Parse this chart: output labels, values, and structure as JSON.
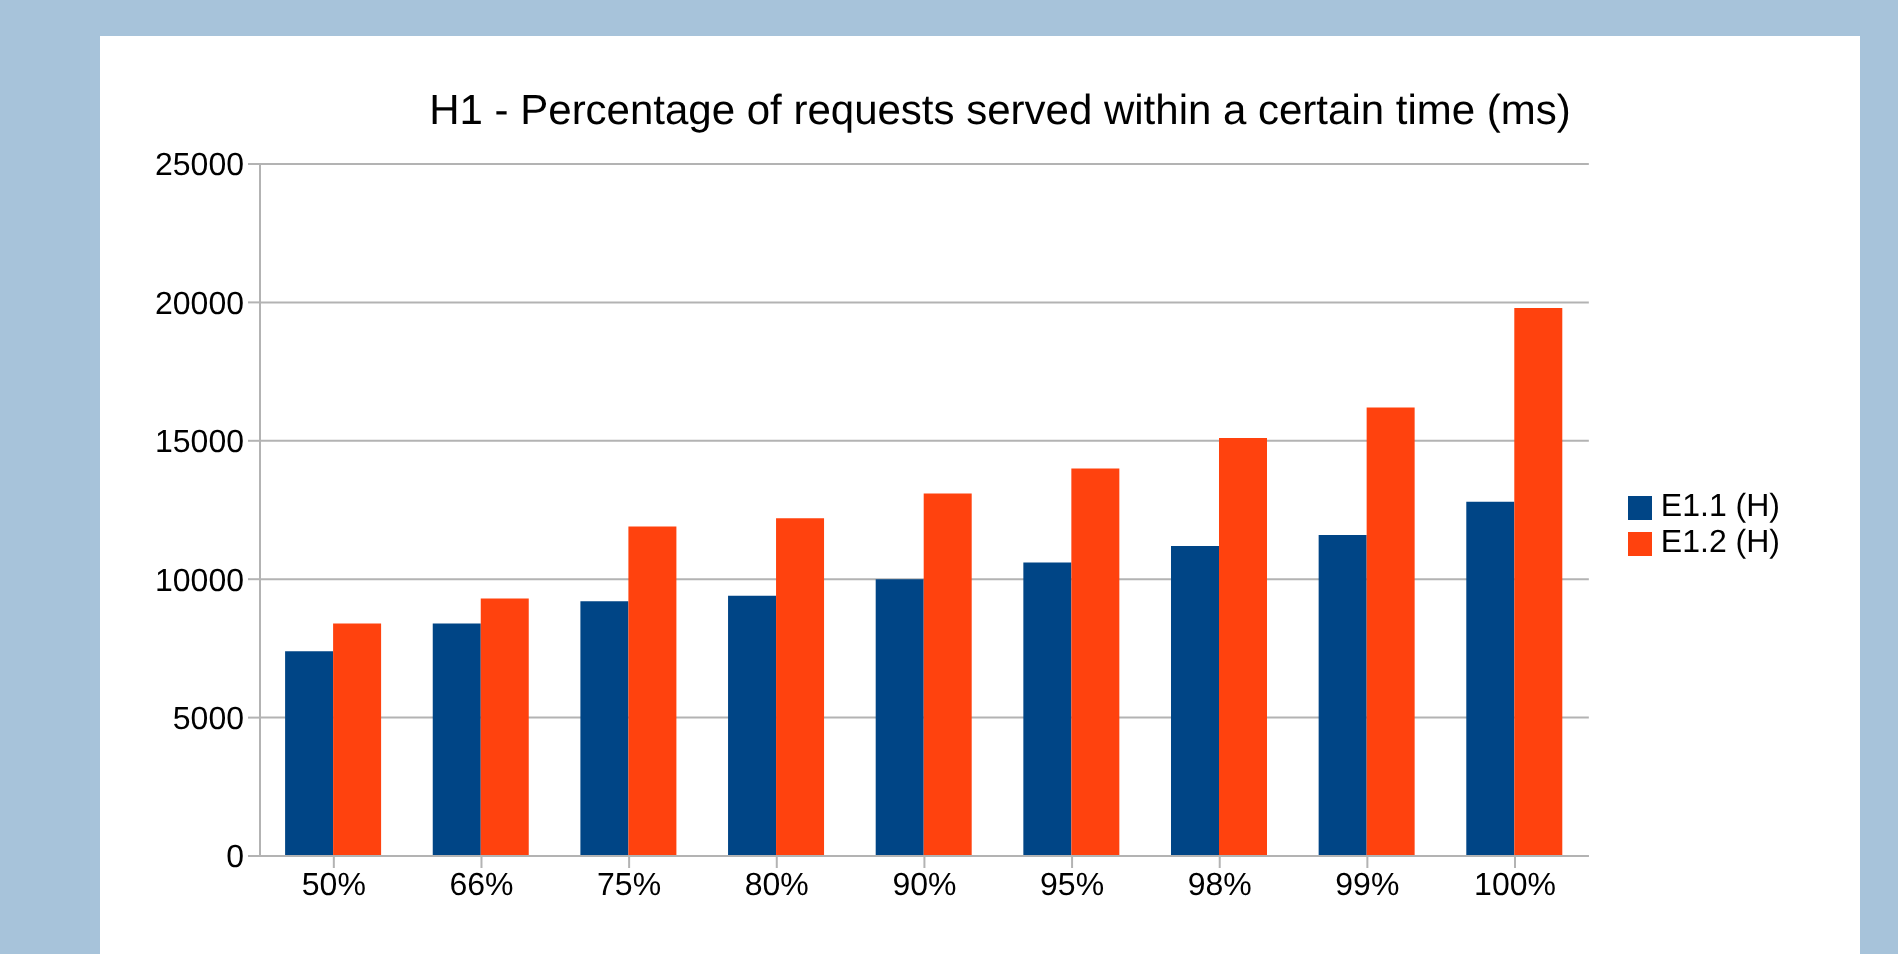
{
  "chart_data": {
    "type": "bar",
    "title": "H1 - Percentage of requests served within a certain time (ms)",
    "categories": [
      "50%",
      "66%",
      "75%",
      "80%",
      "90%",
      "95%",
      "98%",
      "99%",
      "100%"
    ],
    "series": [
      {
        "name": "E1.1 (H)",
        "color": "#004586",
        "values": [
          7400,
          8400,
          9200,
          9400,
          10000,
          10600,
          11200,
          11600,
          12800
        ]
      },
      {
        "name": "E1.2 (H)",
        "color": "#ff420e",
        "values": [
          8400,
          9300,
          11900,
          12200,
          13100,
          14000,
          15100,
          16200,
          19800
        ]
      }
    ],
    "ylim": [
      0,
      25000
    ],
    "yticks": [
      0,
      5000,
      10000,
      15000,
      20000,
      25000
    ],
    "grid": "y",
    "legend": "right"
  }
}
